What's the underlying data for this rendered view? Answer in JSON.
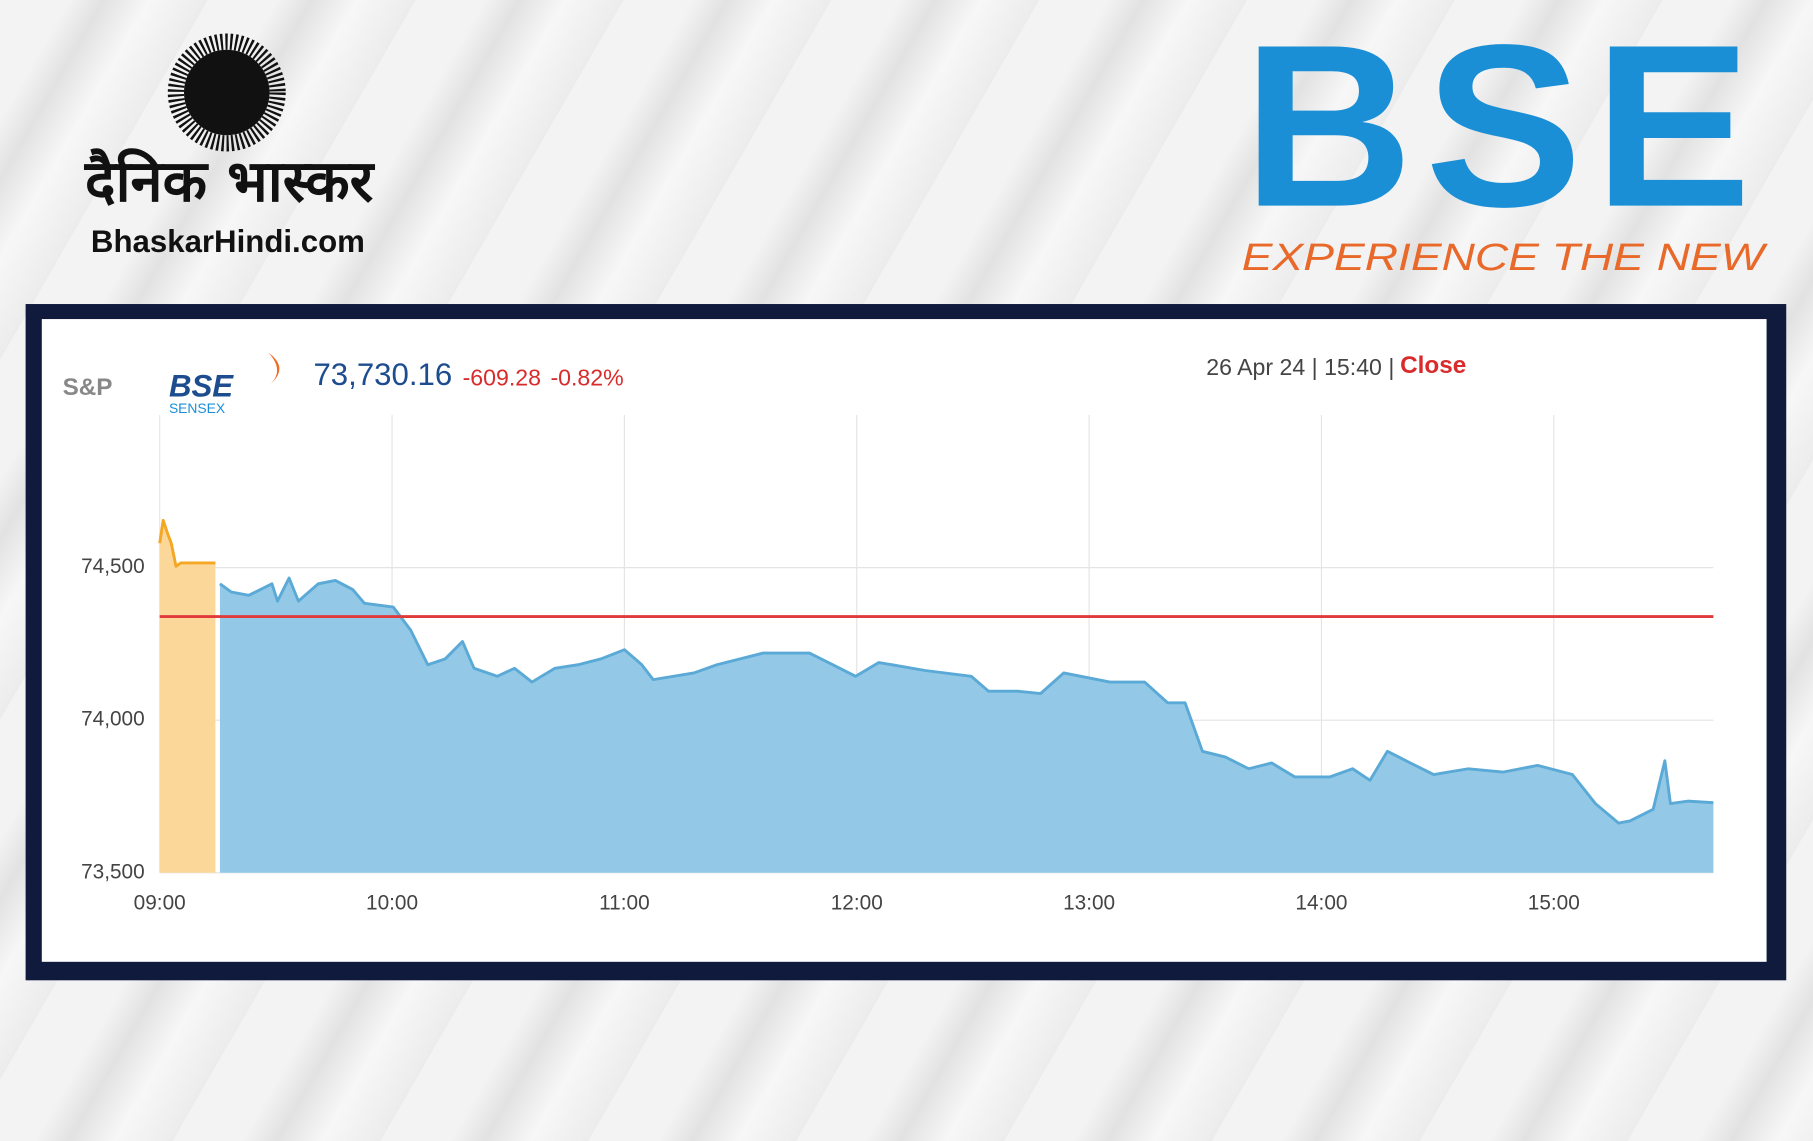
{
  "branding": {
    "publisher_name": "दैनिक भास्कर",
    "publisher_site": "BhaskarHindi.com",
    "exchange_logo": "BSE",
    "exchange_tagline": "EXPERIENCE THE NEW"
  },
  "chart_data": {
    "type": "area",
    "index_logo": {
      "provider": "S&P",
      "exchange": "BSE",
      "index": "SENSEX"
    },
    "price": "73,730.16",
    "change": "-609.28",
    "change_percent": "-0.82%",
    "timestamp": "26 Apr 24 | 15:40 |",
    "status": "Close",
    "xlim": [
      9,
      15.687
    ],
    "ylim": [
      73500,
      75000
    ],
    "xticks": [
      {
        "value": 9,
        "label": "09:00"
      },
      {
        "value": 10,
        "label": "10:00"
      },
      {
        "value": 11,
        "label": "11:00"
      },
      {
        "value": 12,
        "label": "12:00"
      },
      {
        "value": 13,
        "label": "13:00"
      },
      {
        "value": 14,
        "label": "14:00"
      },
      {
        "value": 15,
        "label": "15:00"
      }
    ],
    "yticks": [
      {
        "value": 73500,
        "label": "73,500"
      },
      {
        "value": 74000,
        "label": "74,000"
      },
      {
        "value": 74500,
        "label": "74,500"
      }
    ],
    "grid": true,
    "reference_line": {
      "value": 74339.44,
      "color": "#e03a3a"
    },
    "series": [
      {
        "color": "#f5a623",
        "fill": "#fbd89a",
        "x": [
          9.0,
          9.015,
          9.035,
          9.05,
          9.07,
          9.09,
          9.24
        ],
        "values": [
          74580,
          74655,
          74610,
          74580,
          74504,
          74515,
          74515
        ]
      },
      {
        "color": "#5aa9d6",
        "fill": "#93c9e6",
        "x": [
          9.259,
          9.308,
          9.383,
          9.483,
          9.507,
          9.557,
          9.597,
          9.682,
          9.756,
          9.831,
          9.881,
          10.005,
          10.08,
          10.154,
          10.229,
          10.303,
          10.353,
          10.453,
          10.527,
          10.602,
          10.701,
          10.801,
          10.9,
          11.0,
          11.075,
          11.124,
          11.299,
          11.398,
          11.597,
          11.796,
          11.896,
          11.995,
          12.095,
          12.294,
          12.493,
          12.567,
          12.692,
          12.791,
          12.891,
          13.09,
          13.239,
          13.338,
          13.413,
          13.488,
          13.587,
          13.687,
          13.786,
          13.886,
          14.035,
          14.134,
          14.209,
          14.284,
          14.383,
          14.483,
          14.632,
          14.781,
          14.93,
          15.08,
          15.179,
          15.279,
          15.328,
          15.428,
          15.478,
          15.502,
          15.577,
          15.687
        ],
        "values": [
          74447,
          74420,
          74409,
          74447,
          74390,
          74466,
          74390,
          74447,
          74458,
          74428,
          74383,
          74371,
          74295,
          74182,
          74201,
          74258,
          74170,
          74144,
          74170,
          74125,
          74170,
          74182,
          74201,
          74231,
          74182,
          74133,
          74155,
          74182,
          74220,
          74220,
          74182,
          74144,
          74189,
          74163,
          74144,
          74095,
          74095,
          74087,
          74155,
          74125,
          74125,
          74057,
          74057,
          73898,
          73879,
          73841,
          73860,
          73814,
          73814,
          73841,
          73803,
          73898,
          73860,
          73822,
          73841,
          73830,
          73852,
          73822,
          73727,
          73663,
          73670,
          73708,
          73867,
          73727,
          73735,
          73730
        ]
      }
    ]
  }
}
